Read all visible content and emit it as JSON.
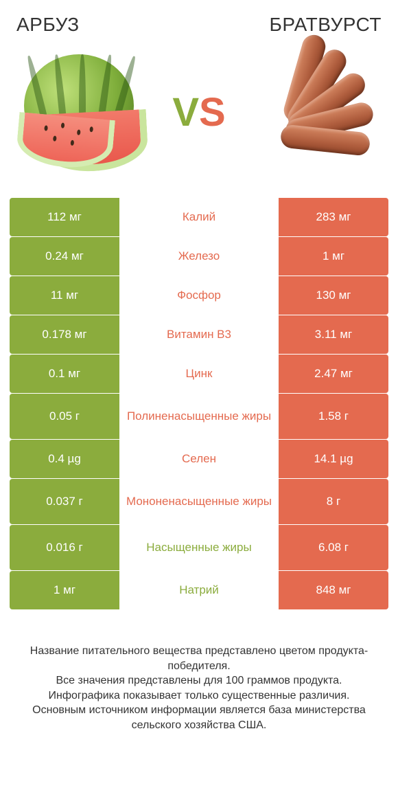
{
  "colors": {
    "left": "#8bac3d",
    "right": "#e46a4f",
    "text": "#333333",
    "row_text": "#ffffff"
  },
  "header": {
    "left_title": "АРБУЗ",
    "right_title": "БРАТВУРСТ",
    "vs_v": "V",
    "vs_s": "S"
  },
  "rows": [
    {
      "left": "112 мг",
      "label": "Калий",
      "right": "283 мг",
      "winner": "right",
      "tall": false
    },
    {
      "left": "0.24 мг",
      "label": "Железо",
      "right": "1 мг",
      "winner": "right",
      "tall": false
    },
    {
      "left": "11 мг",
      "label": "Фосфор",
      "right": "130 мг",
      "winner": "right",
      "tall": false
    },
    {
      "left": "0.178 мг",
      "label": "Витамин B3",
      "right": "3.11 мг",
      "winner": "right",
      "tall": false
    },
    {
      "left": "0.1 мг",
      "label": "Цинк",
      "right": "2.47 мг",
      "winner": "right",
      "tall": false
    },
    {
      "left": "0.05 г",
      "label": "Полиненасыщенные жиры",
      "right": "1.58 г",
      "winner": "right",
      "tall": true
    },
    {
      "left": "0.4 µg",
      "label": "Селен",
      "right": "14.1 µg",
      "winner": "right",
      "tall": false
    },
    {
      "left": "0.037 г",
      "label": "Мононенасыщенные жиры",
      "right": "8 г",
      "winner": "right",
      "tall": true
    },
    {
      "left": "0.016 г",
      "label": "Насыщенные жиры",
      "right": "6.08 г",
      "winner": "left",
      "tall": true
    },
    {
      "left": "1 мг",
      "label": "Натрий",
      "right": "848 мг",
      "winner": "left",
      "tall": false
    }
  ],
  "footer_lines": [
    "Название питательного вещества представлено цветом продукта-победителя.",
    "Все значения представлены для 100 граммов продукта.",
    "Инфографика показывает только существенные различия.",
    "Основным источником информации является база министерства сельского хозяйства США."
  ]
}
